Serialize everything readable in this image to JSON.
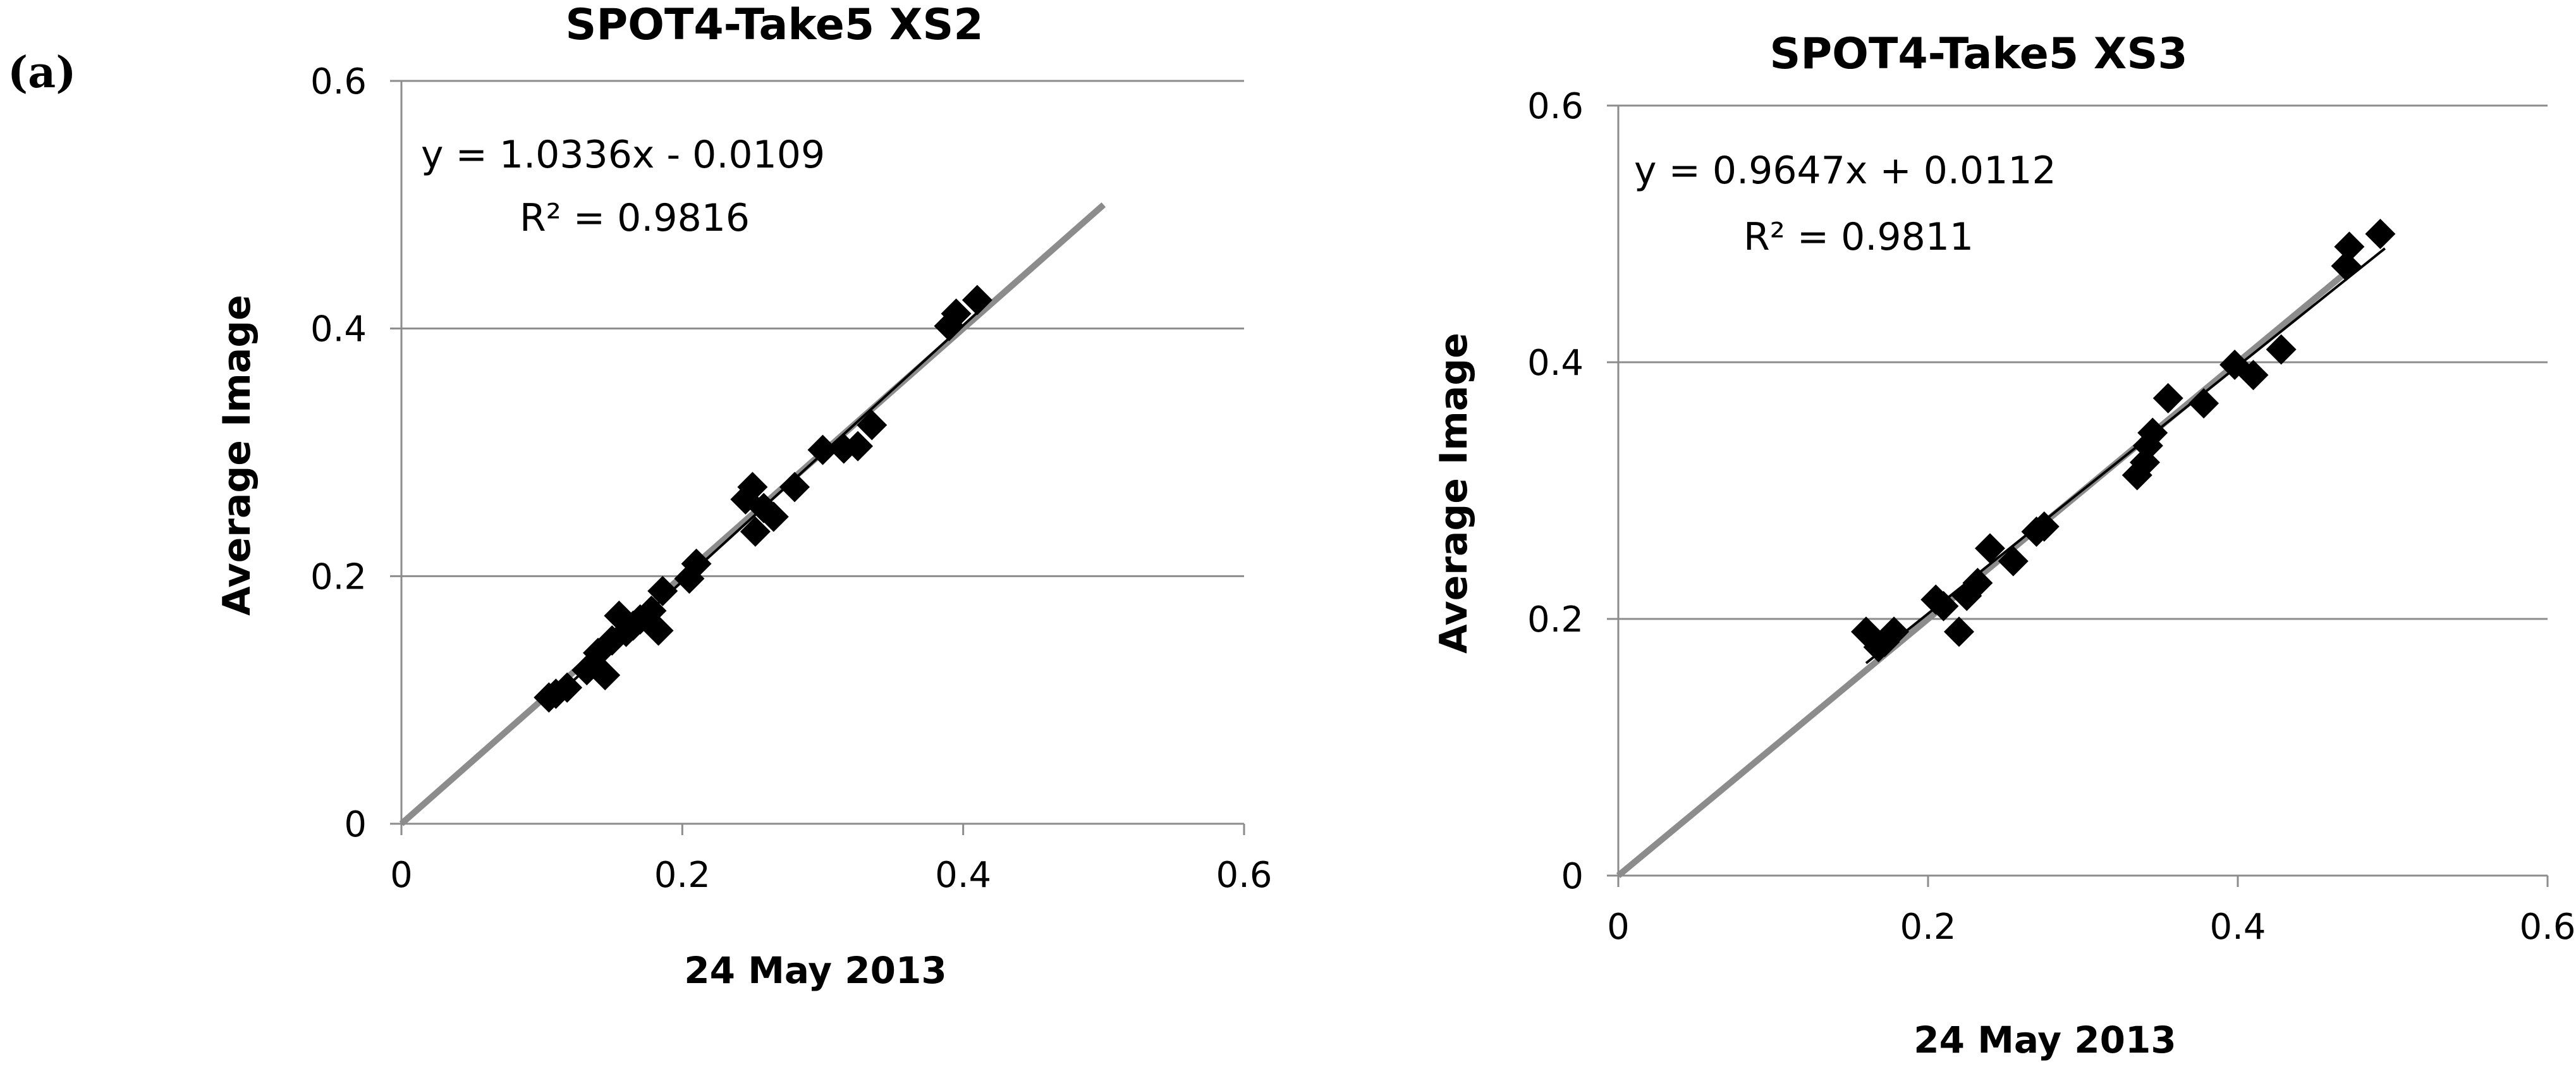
{
  "panel_label": "(a)",
  "colors": {
    "axis": "#8c8c8c",
    "grid": "#8c8c8c",
    "one_to_one": "#8c8c8c",
    "fit": "#000000",
    "marker": "#000000",
    "text": "#000000"
  },
  "chart_data": [
    {
      "type": "scatter",
      "title": "SPOT4-Take5 XS2",
      "xlabel": "24 May 2013",
      "ylabel": "Average Image",
      "xlim": [
        0,
        0.6
      ],
      "ylim": [
        0,
        0.6
      ],
      "xticks": [
        "0",
        "0.2",
        "0.4",
        "0.6"
      ],
      "yticks": [
        "0",
        "0.2",
        "0.4",
        "0.6"
      ],
      "xtick_values": [
        0,
        0.2,
        0.4,
        0.6
      ],
      "ytick_values": [
        0,
        0.2,
        0.4,
        0.6
      ],
      "grid": "horizontal",
      "marker": "diamond",
      "equation": "y = 1.0336x - 0.0109",
      "r_squared": "R² = 0.9816",
      "fit": {
        "slope": 1.0336,
        "intercept": -0.0109,
        "x_range": [
          0.105,
          0.41
        ]
      },
      "reference_line": {
        "x_range": [
          0,
          0.5
        ]
      },
      "points": [
        [
          0.105,
          0.102
        ],
        [
          0.11,
          0.105
        ],
        [
          0.118,
          0.11
        ],
        [
          0.132,
          0.124
        ],
        [
          0.14,
          0.138
        ],
        [
          0.145,
          0.12
        ],
        [
          0.15,
          0.148
        ],
        [
          0.155,
          0.168
        ],
        [
          0.16,
          0.155
        ],
        [
          0.165,
          0.16
        ],
        [
          0.17,
          0.165
        ],
        [
          0.178,
          0.172
        ],
        [
          0.183,
          0.156
        ],
        [
          0.186,
          0.188
        ],
        [
          0.205,
          0.198
        ],
        [
          0.21,
          0.21
        ],
        [
          0.245,
          0.262
        ],
        [
          0.25,
          0.272
        ],
        [
          0.252,
          0.236
        ],
        [
          0.258,
          0.255
        ],
        [
          0.265,
          0.248
        ],
        [
          0.28,
          0.272
        ],
        [
          0.3,
          0.302
        ],
        [
          0.315,
          0.303
        ],
        [
          0.325,
          0.305
        ],
        [
          0.335,
          0.322
        ],
        [
          0.39,
          0.402
        ],
        [
          0.395,
          0.412
        ],
        [
          0.41,
          0.423
        ]
      ]
    },
    {
      "type": "scatter",
      "title": "SPOT4-Take5  XS3",
      "xlabel": "24 May 2013",
      "ylabel": "Average Image",
      "xlim": [
        0,
        0.6
      ],
      "ylim": [
        0,
        0.6
      ],
      "xticks": [
        "0",
        "0.2",
        "0.4",
        "0.6"
      ],
      "yticks": [
        "0",
        "0.2",
        "0.4",
        "0.6"
      ],
      "xtick_values": [
        0,
        0.2,
        0.4,
        0.6
      ],
      "ytick_values": [
        0,
        0.2,
        0.4,
        0.6
      ],
      "grid": "horizontal",
      "marker": "diamond",
      "equation": "y = 0.9647x + 0.0112",
      "r_squared": "R² = 0.9811",
      "fit": {
        "slope": 0.9647,
        "intercept": 0.0112,
        "x_range": [
          0.16,
          0.495
        ]
      },
      "reference_line": {
        "x_range": [
          0,
          0.475
        ]
      },
      "points": [
        [
          0.16,
          0.19
        ],
        [
          0.168,
          0.178
        ],
        [
          0.172,
          0.182
        ],
        [
          0.178,
          0.19
        ],
        [
          0.205,
          0.215
        ],
        [
          0.21,
          0.21
        ],
        [
          0.22,
          0.19
        ],
        [
          0.225,
          0.218
        ],
        [
          0.232,
          0.228
        ],
        [
          0.24,
          0.255
        ],
        [
          0.255,
          0.245
        ],
        [
          0.27,
          0.268
        ],
        [
          0.275,
          0.272
        ],
        [
          0.335,
          0.312
        ],
        [
          0.34,
          0.322
        ],
        [
          0.342,
          0.335
        ],
        [
          0.345,
          0.345
        ],
        [
          0.355,
          0.372
        ],
        [
          0.378,
          0.368
        ],
        [
          0.398,
          0.398
        ],
        [
          0.41,
          0.39
        ],
        [
          0.428,
          0.41
        ],
        [
          0.47,
          0.475
        ],
        [
          0.472,
          0.49
        ],
        [
          0.492,
          0.5
        ]
      ]
    }
  ]
}
